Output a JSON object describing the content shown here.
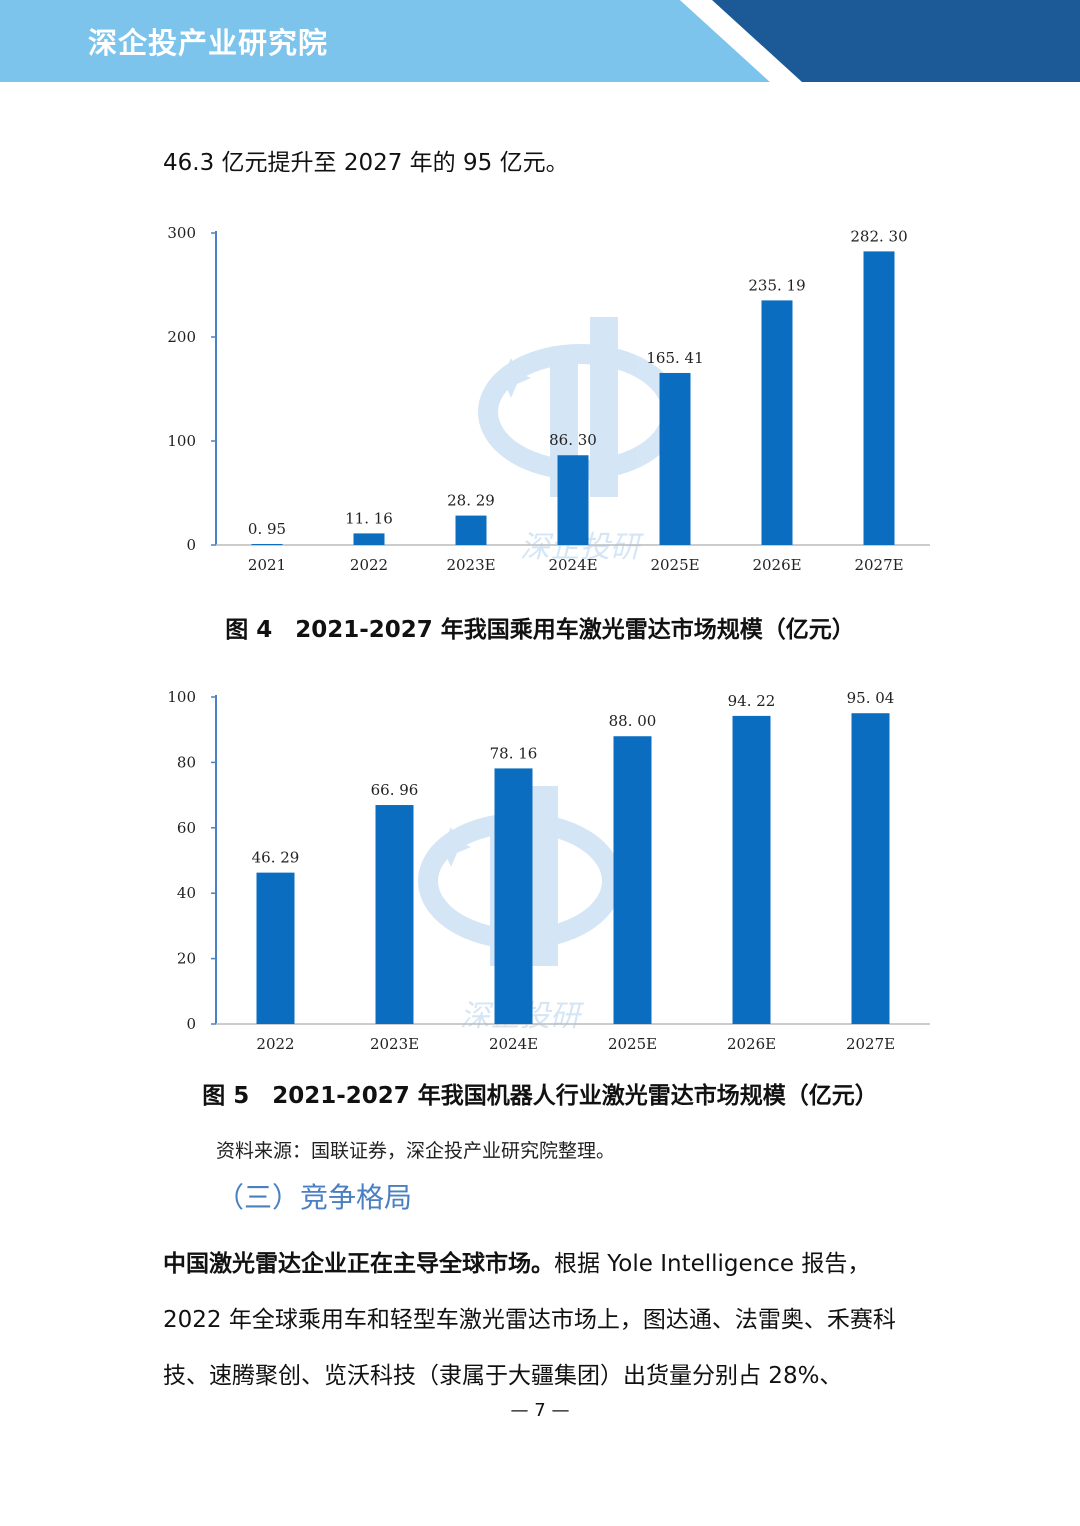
{
  "header": {
    "title": "深企投产业研究院",
    "colors": {
      "light": "#7dc4ec",
      "dark": "#1b5a96"
    }
  },
  "intro_line": "46.3 亿元提升至 2027 年的 95 亿元。",
  "chart_data": [
    {
      "type": "bar",
      "categories": [
        "2021",
        "2022",
        "2023E",
        "2024E",
        "2025E",
        "2026E",
        "2027E"
      ],
      "values": [
        0.95,
        11.16,
        28.29,
        86.3,
        165.41,
        235.19,
        282.3
      ],
      "value_labels": [
        "0. 95",
        "11. 16",
        "28. 29",
        "86. 30",
        "165. 41",
        "235. 19",
        "282. 30"
      ],
      "yticks": [
        "0",
        "100",
        "200",
        "300"
      ],
      "ylim": [
        0,
        300
      ],
      "bar_color": "#0b6dc0",
      "grid": false,
      "title": "",
      "xlabel": "",
      "ylabel": ""
    },
    {
      "type": "bar",
      "categories": [
        "2022",
        "2023E",
        "2024E",
        "2025E",
        "2026E",
        "2027E"
      ],
      "values": [
        46.29,
        66.96,
        78.16,
        88.0,
        94.22,
        95.04
      ],
      "value_labels": [
        "46. 29",
        "66. 96",
        "78. 16",
        "88. 00",
        "94. 22",
        "95. 04"
      ],
      "yticks": [
        "0",
        "20",
        "40",
        "60",
        "80",
        "100"
      ],
      "ylim": [
        0,
        100
      ],
      "bar_color": "#0b6dc0",
      "grid": false,
      "title": "",
      "xlabel": "",
      "ylabel": ""
    }
  ],
  "captions": {
    "fig4": "图 4　2021-2027 年我国乘用车激光雷达市场规模（亿元）",
    "fig5": "图 5　2021-2027 年我国机器人行业激光雷达市场规模（亿元）"
  },
  "watermark_text": "深企投研",
  "source": "资料来源：国联证券，深企投产业研究院整理。",
  "section_heading": "（三）竞争格局",
  "paragraph": {
    "lead": "中国激光雷达企业正在主导全球市场。",
    "body": "根据 Yole Intelligence 报告，2022 年全球乘用车和轻型车激光雷达市场上，图达通、法雷奥、禾赛科技、速腾聚创、览沃科技（隶属于大疆集团）出货量分别占 28%、"
  },
  "page_number": "— 7 —"
}
